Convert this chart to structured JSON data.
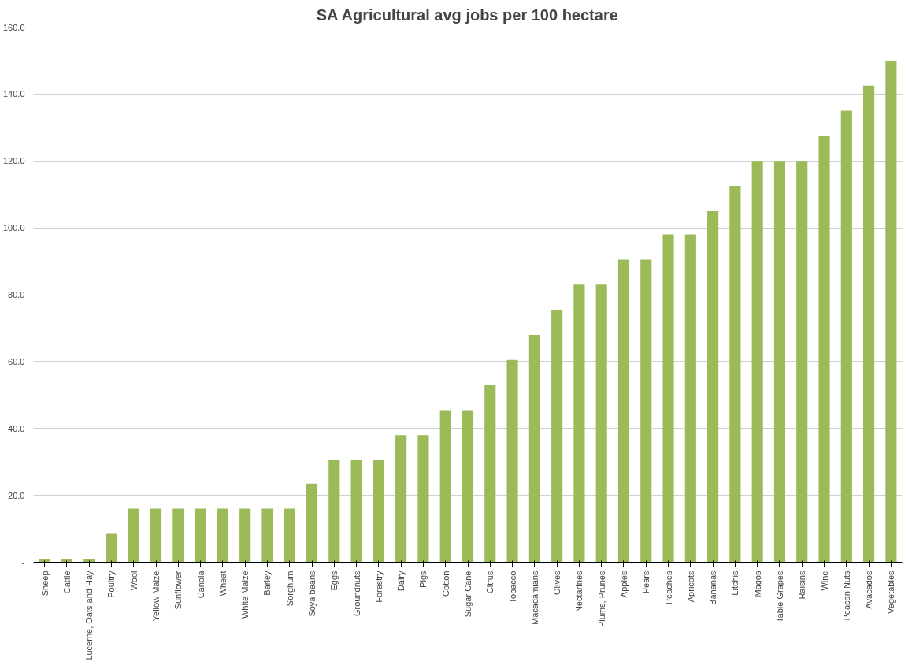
{
  "chart_data": {
    "type": "bar",
    "title": "SA Agricultural avg jobs per 100 hectare",
    "categories": [
      "Sheep",
      "Cattle",
      "Lucerne, Oats and Hay",
      "Poultry",
      "Wool",
      "Yellow Maize",
      "Sunflower",
      "Canola",
      "Wheat",
      "White Maize",
      "Barley",
      "Sorghum",
      "Soya beans",
      "Eggs",
      "Groundnuts",
      "Forestry",
      "Dairy",
      "Pigs",
      "Cotton",
      "Sugar Cane",
      "Citrus",
      "Tobacco",
      "Macadamians",
      "Olives",
      "Nectarines",
      "Plums, Prunes",
      "Apples",
      "Pears",
      "Peaches",
      "Apricots",
      "Bananas",
      "Litchis",
      "Magos",
      "Table Grapes",
      "Raisins",
      "Wine",
      "Peacan Nuts",
      "Avacados",
      "Vegetables"
    ],
    "values": [
      1,
      1,
      1,
      8.5,
      16,
      16,
      16,
      16,
      16,
      16,
      16,
      16,
      23.5,
      30.5,
      30.5,
      30.5,
      38,
      38,
      45.5,
      45.5,
      53,
      60.5,
      68,
      75.5,
      83,
      83,
      90.5,
      90.5,
      98,
      98,
      105,
      112.5,
      120,
      120,
      120,
      127.5,
      135,
      142.5,
      150
    ],
    "color": "#9bbb59",
    "ylim": [
      0,
      160
    ],
    "yticks": [
      {
        "value": 0,
        "label": "-"
      },
      {
        "value": 20,
        "label": "20.0"
      },
      {
        "value": 40,
        "label": "40.0"
      },
      {
        "value": 60,
        "label": "60.0"
      },
      {
        "value": 80,
        "label": "80.0"
      },
      {
        "value": 100,
        "label": "100.0"
      },
      {
        "value": 120,
        "label": "120.0"
      },
      {
        "value": 140,
        "label": "140.0"
      },
      {
        "value": 160,
        "label": "160.0"
      }
    ],
    "grid": "y"
  }
}
